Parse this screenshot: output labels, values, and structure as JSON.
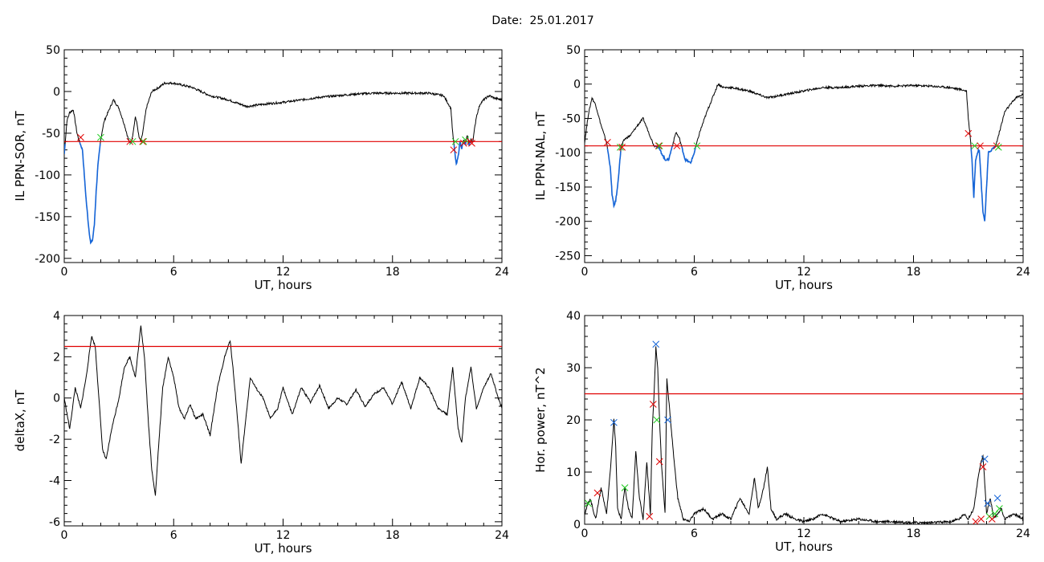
{
  "header": {
    "date_label": "Date:",
    "date_value": "25.01.2017"
  },
  "colors": {
    "data": "#000000",
    "below_threshold": "#1565d8",
    "threshold": "#e00000",
    "marker_red": "#e00000",
    "marker_green": "#22cc22",
    "marker_blue": "#1565d8"
  },
  "chart_data": [
    {
      "type": "line",
      "title": "",
      "xlabel": "UT, hours",
      "ylabel": "IL PPN-SOR, nT",
      "xlim": [
        0,
        24
      ],
      "ylim": [
        -205,
        50
      ],
      "xticks": [
        "0",
        "6",
        "12",
        "18",
        "24"
      ],
      "yticks": [
        "50",
        "0",
        "-50",
        "-100",
        "-150",
        "-200"
      ],
      "threshold": -60,
      "series": [
        {
          "x": [
            0,
            0.15,
            0.3,
            0.5,
            0.7,
            0.8,
            0.9,
            1.0,
            1.1,
            1.2,
            1.35,
            1.45,
            1.55,
            1.65,
            1.75,
            1.85,
            2.0,
            2.1,
            2.2,
            2.4,
            2.7,
            3.0,
            3.3,
            3.5,
            3.6,
            3.7,
            3.8,
            3.9,
            4.0,
            4.1,
            4.2,
            4.3,
            4.5,
            4.8,
            5.2,
            5.5,
            6.0,
            7.0,
            8.0,
            9.0,
            10.0,
            11.0,
            12.0,
            13.0,
            14.0,
            15.0,
            16.0,
            17.0,
            18.0,
            19.0,
            20.0,
            20.8,
            21.2,
            21.3,
            21.4,
            21.5,
            21.6,
            21.7,
            21.8,
            21.9,
            22.0,
            22.1,
            22.2,
            22.3,
            22.4,
            22.5,
            22.6,
            22.8,
            23.0,
            23.3,
            23.6,
            24.0
          ],
          "y": [
            -75,
            -35,
            -25,
            -22,
            -50,
            -58,
            -64,
            -70,
            -100,
            -130,
            -165,
            -182,
            -178,
            -160,
            -120,
            -88,
            -58,
            -45,
            -35,
            -25,
            -10,
            -20,
            -40,
            -56,
            -62,
            -60,
            -45,
            -30,
            -40,
            -55,
            -60,
            -50,
            -20,
            0,
            5,
            10,
            10,
            5,
            -5,
            -10,
            -18,
            -15,
            -13,
            -10,
            -7,
            -5,
            -3,
            -2,
            -2,
            -2,
            -2,
            -5,
            -20,
            -50,
            -70,
            -88,
            -78,
            -60,
            -68,
            -58,
            -64,
            -52,
            -64,
            -58,
            -60,
            -45,
            -30,
            -15,
            -10,
            -5,
            -8,
            -10
          ]
        }
      ],
      "markers": [
        {
          "x": 0.9,
          "y": -55,
          "color": "red"
        },
        {
          "x": 2.0,
          "y": -55,
          "color": "green"
        },
        {
          "x": 3.6,
          "y": -60,
          "color": "red"
        },
        {
          "x": 3.75,
          "y": -60,
          "color": "green"
        },
        {
          "x": 4.3,
          "y": -60,
          "color": "red"
        },
        {
          "x": 4.35,
          "y": -60,
          "color": "green"
        },
        {
          "x": 21.35,
          "y": -70,
          "color": "red"
        },
        {
          "x": 21.45,
          "y": -60,
          "color": "green"
        },
        {
          "x": 21.9,
          "y": -62,
          "color": "red"
        },
        {
          "x": 22.0,
          "y": -58,
          "color": "green"
        },
        {
          "x": 22.25,
          "y": -60,
          "color": "red"
        },
        {
          "x": 22.35,
          "y": -62,
          "color": "red"
        }
      ]
    },
    {
      "type": "line",
      "title": "",
      "xlabel": "UT, hours",
      "ylabel": "IL PPN-NAL, nT",
      "xlim": [
        0,
        24
      ],
      "ylim": [
        -260,
        50
      ],
      "xticks": [
        "0",
        "6",
        "12",
        "18",
        "24"
      ],
      "yticks": [
        "50",
        "0",
        "-50",
        "-100",
        "-150",
        "-200",
        "-250"
      ],
      "threshold": -90,
      "series": [
        {
          "x": [
            0,
            0.2,
            0.4,
            0.6,
            0.9,
            1.2,
            1.4,
            1.5,
            1.6,
            1.7,
            1.8,
            1.9,
            2.0,
            2.2,
            2.5,
            2.9,
            3.2,
            3.5,
            3.8,
            4.0,
            4.2,
            4.4,
            4.6,
            4.8,
            5.0,
            5.2,
            5.5,
            5.8,
            6.0,
            6.3,
            6.7,
            7.0,
            7.3,
            7.6,
            8.0,
            9.0,
            10.0,
            11.0,
            12.0,
            13.0,
            14.0,
            15.0,
            16.0,
            17.0,
            18.0,
            19.0,
            20.0,
            20.6,
            20.9,
            21.0,
            21.1,
            21.2,
            21.3,
            21.4,
            21.5,
            21.6,
            21.7,
            21.8,
            21.9,
            22.0,
            22.1,
            22.3,
            22.5,
            22.6,
            22.8,
            23.0,
            23.3,
            23.6,
            24.0
          ],
          "y": [
            -85,
            -45,
            -20,
            -30,
            -60,
            -85,
            -120,
            -160,
            -178,
            -170,
            -150,
            -120,
            -90,
            -80,
            -75,
            -60,
            -50,
            -70,
            -90,
            -90,
            -100,
            -110,
            -110,
            -90,
            -70,
            -80,
            -110,
            -115,
            -100,
            -70,
            -40,
            -20,
            0,
            -5,
            -5,
            -10,
            -20,
            -15,
            -10,
            -5,
            -5,
            -3,
            -2,
            -3,
            -2,
            -3,
            -5,
            -8,
            -10,
            -50,
            -75,
            -110,
            -165,
            -110,
            -100,
            -95,
            -140,
            -185,
            -200,
            -150,
            -100,
            -95,
            -90,
            -80,
            -60,
            -40,
            -30,
            -20,
            -15
          ]
        }
      ],
      "markers": [
        {
          "x": 1.25,
          "y": -85,
          "color": "red"
        },
        {
          "x": 1.95,
          "y": -92,
          "color": "green"
        },
        {
          "x": 2.05,
          "y": -92,
          "color": "red"
        },
        {
          "x": 4.05,
          "y": -90,
          "color": "red"
        },
        {
          "x": 4.1,
          "y": -90,
          "color": "green"
        },
        {
          "x": 5.05,
          "y": -90,
          "color": "red"
        },
        {
          "x": 6.15,
          "y": -90,
          "color": "green"
        },
        {
          "x": 21.0,
          "y": -72,
          "color": "red"
        },
        {
          "x": 21.35,
          "y": -90,
          "color": "green"
        },
        {
          "x": 21.65,
          "y": -90,
          "color": "red"
        },
        {
          "x": 22.55,
          "y": -90,
          "color": "red"
        },
        {
          "x": 22.65,
          "y": -92,
          "color": "green"
        }
      ]
    },
    {
      "type": "line",
      "title": "",
      "xlabel": "UT, hours",
      "ylabel": "deltaX, nT",
      "xlim": [
        0,
        24
      ],
      "ylim": [
        -6.2,
        4
      ],
      "xticks": [
        "0",
        "6",
        "12",
        "18",
        "24"
      ],
      "yticks": [
        "4",
        "2",
        "0",
        "-2",
        "-4",
        "-6"
      ],
      "threshold": 2.5,
      "series": [
        {
          "x": [
            0,
            0.3,
            0.6,
            0.9,
            1.2,
            1.5,
            1.7,
            1.9,
            2.1,
            2.3,
            2.6,
            3.0,
            3.3,
            3.6,
            3.9,
            4.2,
            4.4,
            4.6,
            4.8,
            5.0,
            5.2,
            5.4,
            5.7,
            6.0,
            6.3,
            6.6,
            6.9,
            7.2,
            7.6,
            8.0,
            8.4,
            8.8,
            9.1,
            9.3,
            9.5,
            9.7,
            9.9,
            10.2,
            10.5,
            10.9,
            11.3,
            11.7,
            12.0,
            12.5,
            13.0,
            13.5,
            14.0,
            14.5,
            15.0,
            15.5,
            16.0,
            16.5,
            17.0,
            17.5,
            18.0,
            18.5,
            19.0,
            19.5,
            20.0,
            20.5,
            21.0,
            21.3,
            21.6,
            21.8,
            22.0,
            22.3,
            22.6,
            23.0,
            23.4,
            23.8,
            24.0
          ],
          "y": [
            0,
            -1.5,
            0.5,
            -0.5,
            1.0,
            3.0,
            2.5,
            0,
            -2.5,
            -3.0,
            -1.5,
            0,
            1.5,
            2.0,
            1.0,
            3.5,
            2.0,
            -1.0,
            -3.5,
            -4.7,
            -2.0,
            0.5,
            2.0,
            1.0,
            -0.5,
            -1.0,
            -0.3,
            -1.0,
            -0.8,
            -1.8,
            0.5,
            2.0,
            2.8,
            1.0,
            -1.0,
            -3.2,
            -1.5,
            1.0,
            0.5,
            0,
            -1.0,
            -0.5,
            0.5,
            -0.8,
            0.5,
            -0.2,
            0.6,
            -0.5,
            0,
            -0.3,
            0.4,
            -0.4,
            0.2,
            0.5,
            -0.3,
            0.8,
            -0.5,
            1.0,
            0.5,
            -0.5,
            -0.8,
            1.5,
            -1.5,
            -2.2,
            0,
            1.5,
            -0.5,
            0.5,
            1.2,
            0,
            -0.5
          ]
        }
      ],
      "markers": []
    },
    {
      "type": "line",
      "title": "",
      "xlabel": "UT, hours",
      "ylabel": "Hor. power, nT^2",
      "xlim": [
        0,
        24
      ],
      "ylim": [
        0,
        40
      ],
      "xticks": [
        "0",
        "6",
        "12",
        "18",
        "24"
      ],
      "yticks": [
        "40",
        "30",
        "20",
        "10",
        "0"
      ],
      "threshold": 25,
      "series": [
        {
          "x": [
            0,
            0.3,
            0.6,
            0.9,
            1.2,
            1.4,
            1.6,
            1.7,
            1.8,
            2.0,
            2.2,
            2.4,
            2.6,
            2.8,
            3.0,
            3.2,
            3.4,
            3.6,
            3.7,
            3.8,
            3.9,
            4.0,
            4.1,
            4.2,
            4.4,
            4.5,
            4.7,
            4.9,
            5.1,
            5.4,
            5.7,
            6.0,
            6.5,
            7.0,
            7.5,
            8.0,
            8.5,
            9.0,
            9.3,
            9.5,
            9.8,
            10.0,
            10.2,
            10.5,
            11.0,
            11.5,
            12.0,
            12.5,
            13.0,
            14.0,
            15.0,
            16.0,
            17.0,
            18.0,
            19.0,
            20.0,
            20.5,
            20.8,
            21.0,
            21.3,
            21.5,
            21.7,
            21.8,
            21.9,
            22.0,
            22.2,
            22.4,
            22.6,
            22.8,
            23.0,
            23.5,
            24.0
          ],
          "y": [
            2,
            5,
            1,
            7,
            2,
            10,
            20,
            15,
            3,
            1,
            7,
            3,
            1,
            14,
            5,
            1,
            12,
            2,
            18,
            25,
            34,
            30,
            20,
            12,
            2,
            28,
            20,
            12,
            5,
            1,
            0.5,
            2,
            3,
            1,
            2,
            1,
            5,
            2,
            9,
            3,
            7,
            11,
            3,
            1,
            2,
            1,
            0.5,
            1,
            2,
            0.5,
            1,
            0.5,
            0.5,
            0.3,
            0.3,
            0.5,
            1,
            2,
            1,
            3,
            8,
            12,
            13,
            8,
            2,
            5,
            1,
            2,
            3,
            1,
            2,
            1
          ]
        }
      ],
      "markers": [
        {
          "x": 0.2,
          "y": 4,
          "color": "green"
        },
        {
          "x": 0.7,
          "y": 6,
          "color": "red"
        },
        {
          "x": 1.6,
          "y": 19.5,
          "color": "blue"
        },
        {
          "x": 2.2,
          "y": 7,
          "color": "green"
        },
        {
          "x": 3.55,
          "y": 1.5,
          "color": "red"
        },
        {
          "x": 3.75,
          "y": 23,
          "color": "red"
        },
        {
          "x": 3.9,
          "y": 34.5,
          "color": "blue"
        },
        {
          "x": 3.95,
          "y": 20,
          "color": "green"
        },
        {
          "x": 4.1,
          "y": 12,
          "color": "red"
        },
        {
          "x": 4.55,
          "y": 20,
          "color": "blue"
        },
        {
          "x": 21.4,
          "y": 0.5,
          "color": "red"
        },
        {
          "x": 21.7,
          "y": 1,
          "color": "red"
        },
        {
          "x": 21.8,
          "y": 11,
          "color": "red"
        },
        {
          "x": 21.9,
          "y": 12.5,
          "color": "blue"
        },
        {
          "x": 22.05,
          "y": 4,
          "color": "blue"
        },
        {
          "x": 22.15,
          "y": 1.5,
          "color": "green"
        },
        {
          "x": 22.3,
          "y": 1,
          "color": "red"
        },
        {
          "x": 22.45,
          "y": 2,
          "color": "green"
        },
        {
          "x": 22.6,
          "y": 5,
          "color": "blue"
        },
        {
          "x": 22.7,
          "y": 3,
          "color": "green"
        }
      ]
    }
  ]
}
